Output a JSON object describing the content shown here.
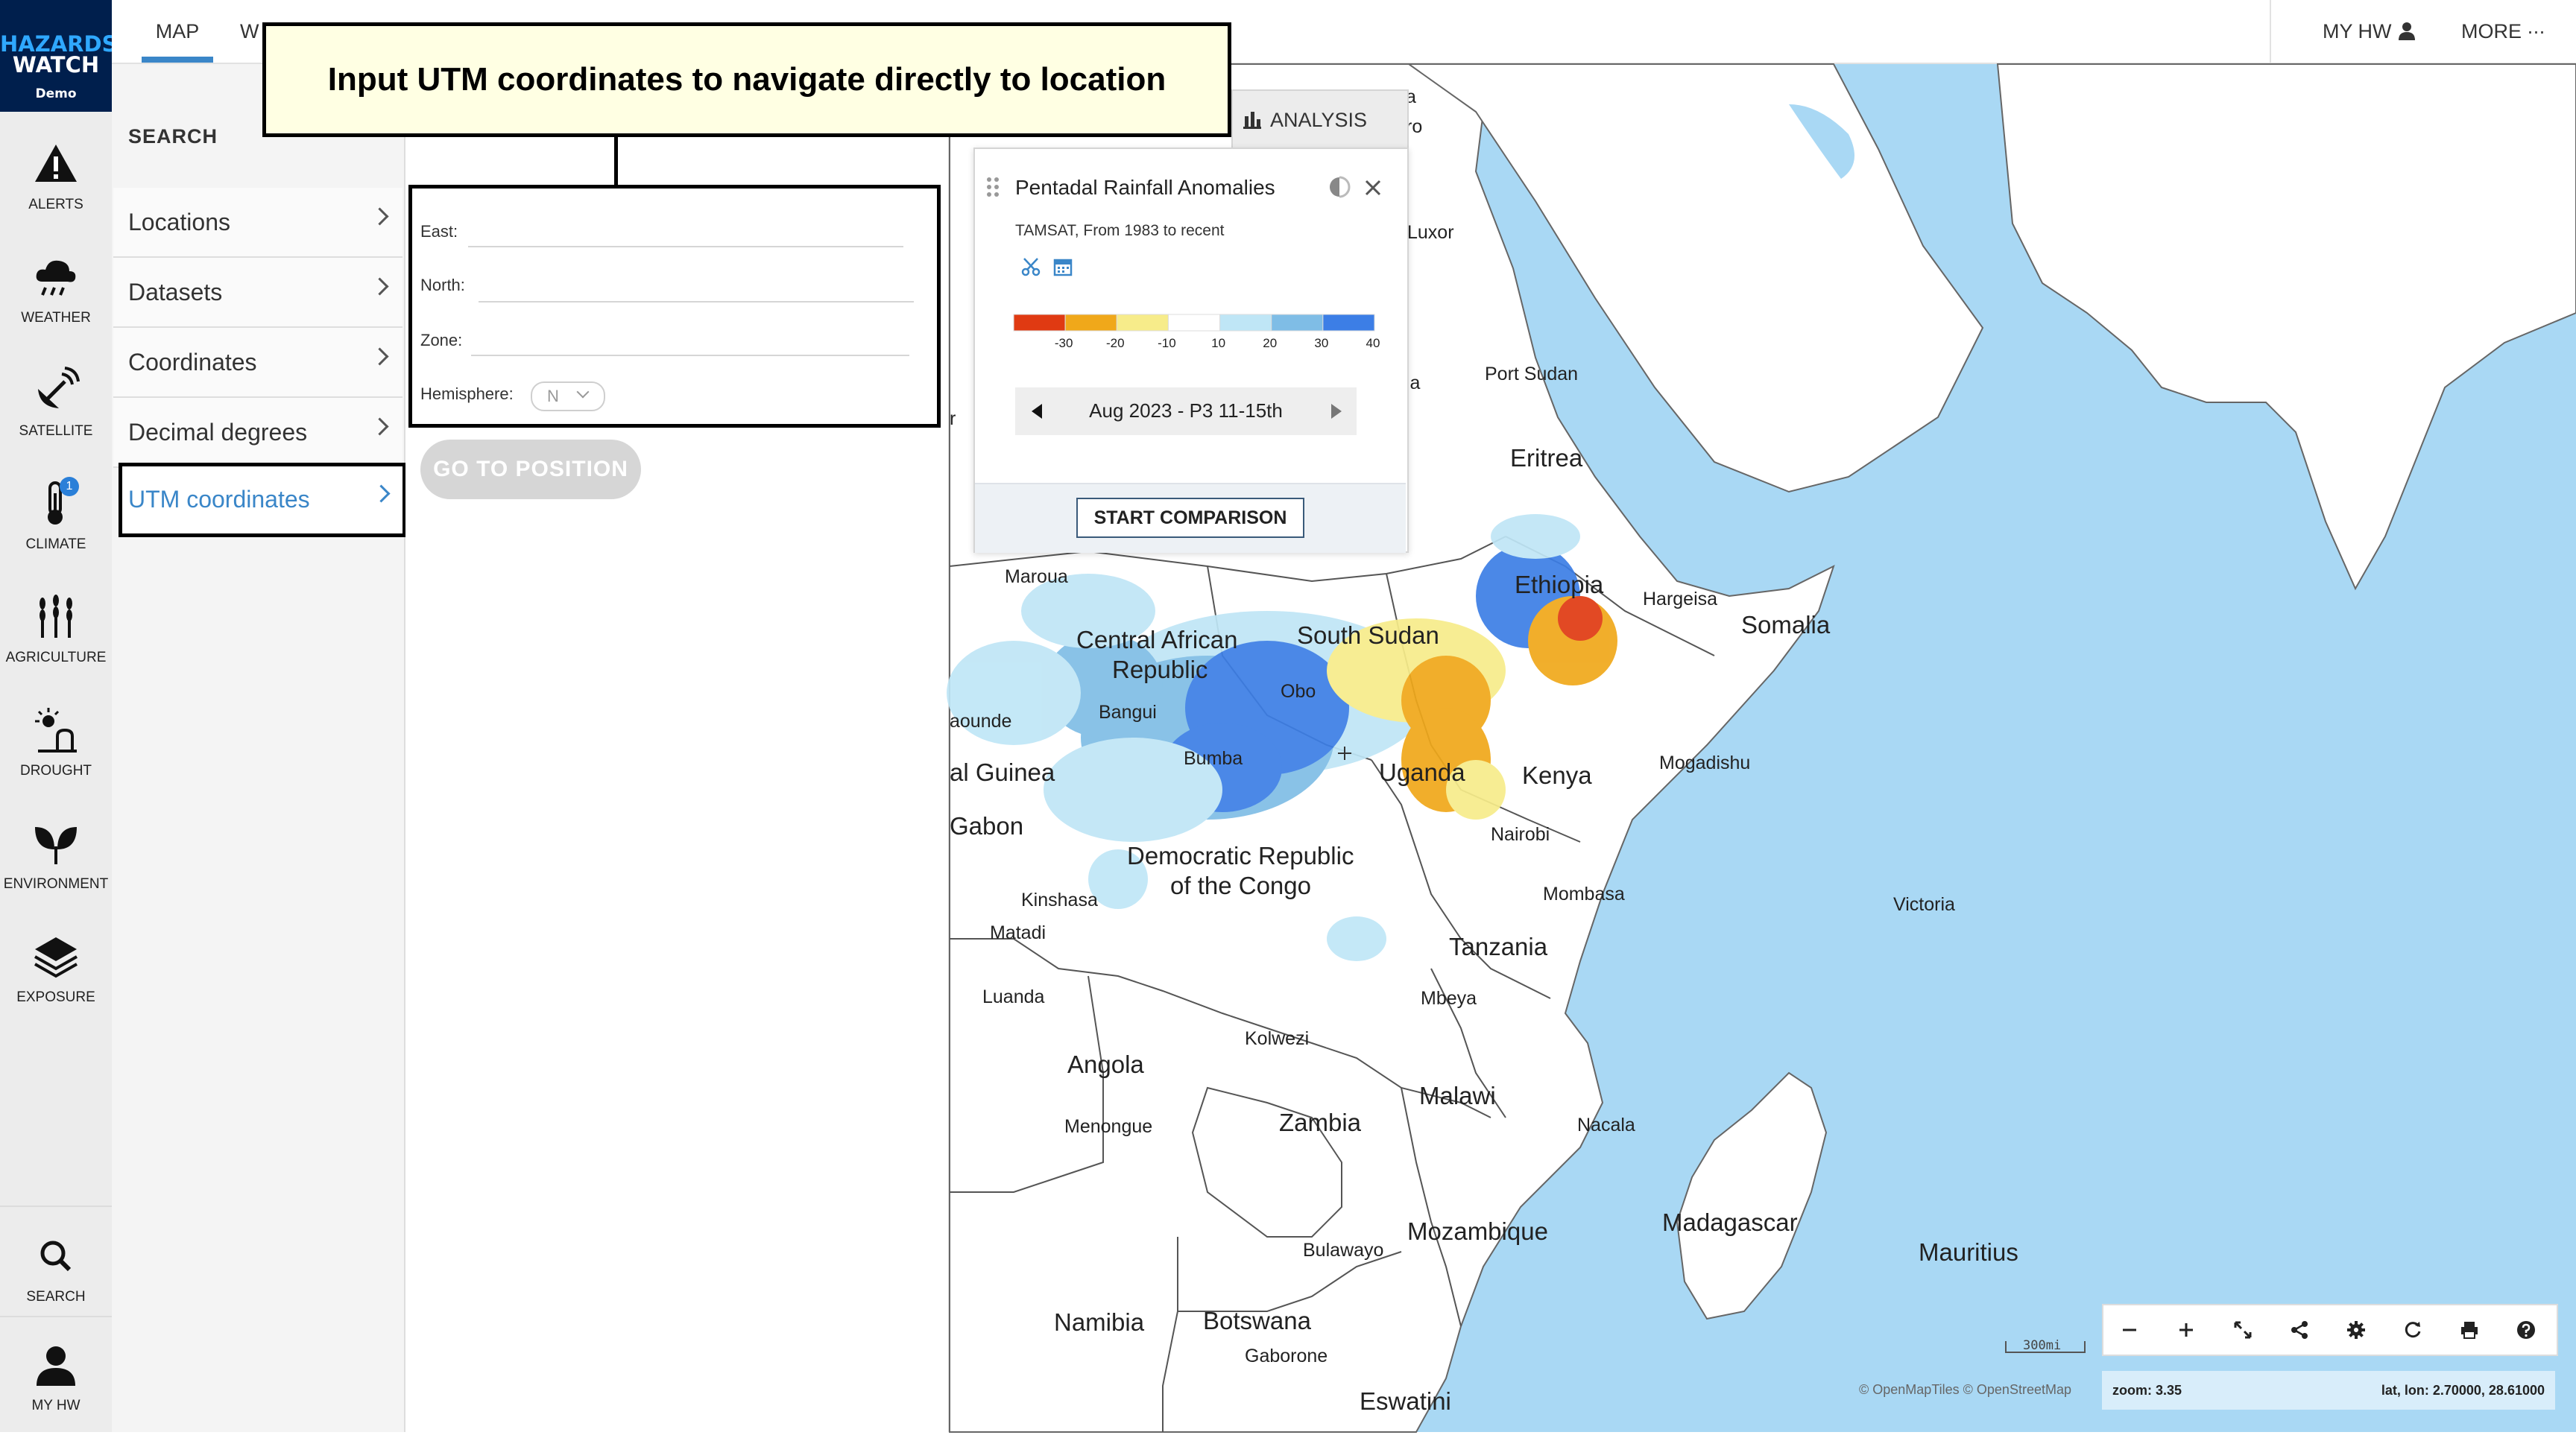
{
  "logo": {
    "line1": "HAZARDS",
    "line2": "WATCH",
    "line3": "Demo"
  },
  "rail": {
    "alerts": "ALERTS",
    "weather": "WEATHER",
    "satellite": "SATELLITE",
    "climate": "CLIMATE",
    "climate_badge": "1",
    "agriculture": "AGRICULTURE",
    "drought": "DROUGHT",
    "environment": "ENVIRONMENT",
    "exposure": "EXPOSURE",
    "search": "SEARCH",
    "myhw": "MY HW"
  },
  "topbar": {
    "tab_map": "MAP",
    "tab_w": "W",
    "my_hw": "MY HW",
    "more": "MORE"
  },
  "callout": "Input UTM coordinates to navigate directly to location",
  "search": {
    "title": "SEARCH",
    "menu": [
      "Locations",
      "Datasets",
      "Coordinates",
      "Decimal degrees",
      "UTM coordinates"
    ],
    "east_label": "East:",
    "north_label": "North:",
    "zone_label": "Zone:",
    "hemisphere_label": "Hemisphere:",
    "hemisphere_value": "N",
    "go_button": "GO TO POSITION"
  },
  "analysis": {
    "tab_label": "ANALYSIS",
    "card_title": "Pentadal Rainfall Anomalies",
    "card_subtitle": "TAMSAT, From 1983 to recent",
    "legend_ticks": [
      "-30",
      "-20",
      "-10",
      "10",
      "20",
      "30",
      "40"
    ],
    "legend_colors": [
      "#e03a12",
      "#f0a81a",
      "#f7ec8a",
      "#ffffff",
      "#bfe6f6",
      "#7fbde6",
      "#3c7ee6"
    ],
    "period": "Aug 2023 - P3 11-15th",
    "compare_button": "START COMPARISON"
  },
  "map": {
    "labels": {
      "luxor": "Luxor",
      "port_sudan": "Port Sudan",
      "eritrea": "Eritrea",
      "ethiopia": "Ethiopia",
      "hargeisa": "Hargeisa",
      "somalia": "Somalia",
      "maroua": "Maroua",
      "car1": "Central African",
      "car2": "Republic",
      "south_sudan": "South Sudan",
      "obo": "Obo",
      "bangui": "Bangui",
      "yaounde": "aounde",
      "al_guinea": "al Guinea",
      "bumba": "Bumba",
      "uganda": "Uganda",
      "kenya": "Kenya",
      "mogadishu": "Mogadishu",
      "gabon": "Gabon",
      "nairobi": "Nairobi",
      "drc1": "Democratic Republic",
      "drc2": "of the Congo",
      "kinshasa": "Kinshasa",
      "matadi": "Matadi",
      "mombasa": "Mombasa",
      "victoria": "Victoria",
      "tanzania": "Tanzania",
      "luanda": "Luanda",
      "mbeya": "Mbeya",
      "kolwezi": "Kolwezi",
      "angola": "Angola",
      "menongue": "Menongue",
      "zambia": "Zambia",
      "malawi": "Malawi",
      "nacala": "Nacala",
      "mozambique": "Mozambique",
      "madagascar": "Madagascar",
      "mauritius": "Mauritius",
      "bulawayo": "Bulawayo",
      "namibia": "Namibia",
      "botswana": "Botswana",
      "gaborone": "Gaborone",
      "eswatini": "Eswatini",
      "la1": "a",
      "la2": "ro",
      "la3": "la",
      "la4": "r"
    },
    "scale": "300mi",
    "attribution": "© OpenMapTiles  © OpenStreetMap",
    "zoom": "zoom: 3.35",
    "latlon": "lat, lon: 2.70000, 28.61000"
  }
}
